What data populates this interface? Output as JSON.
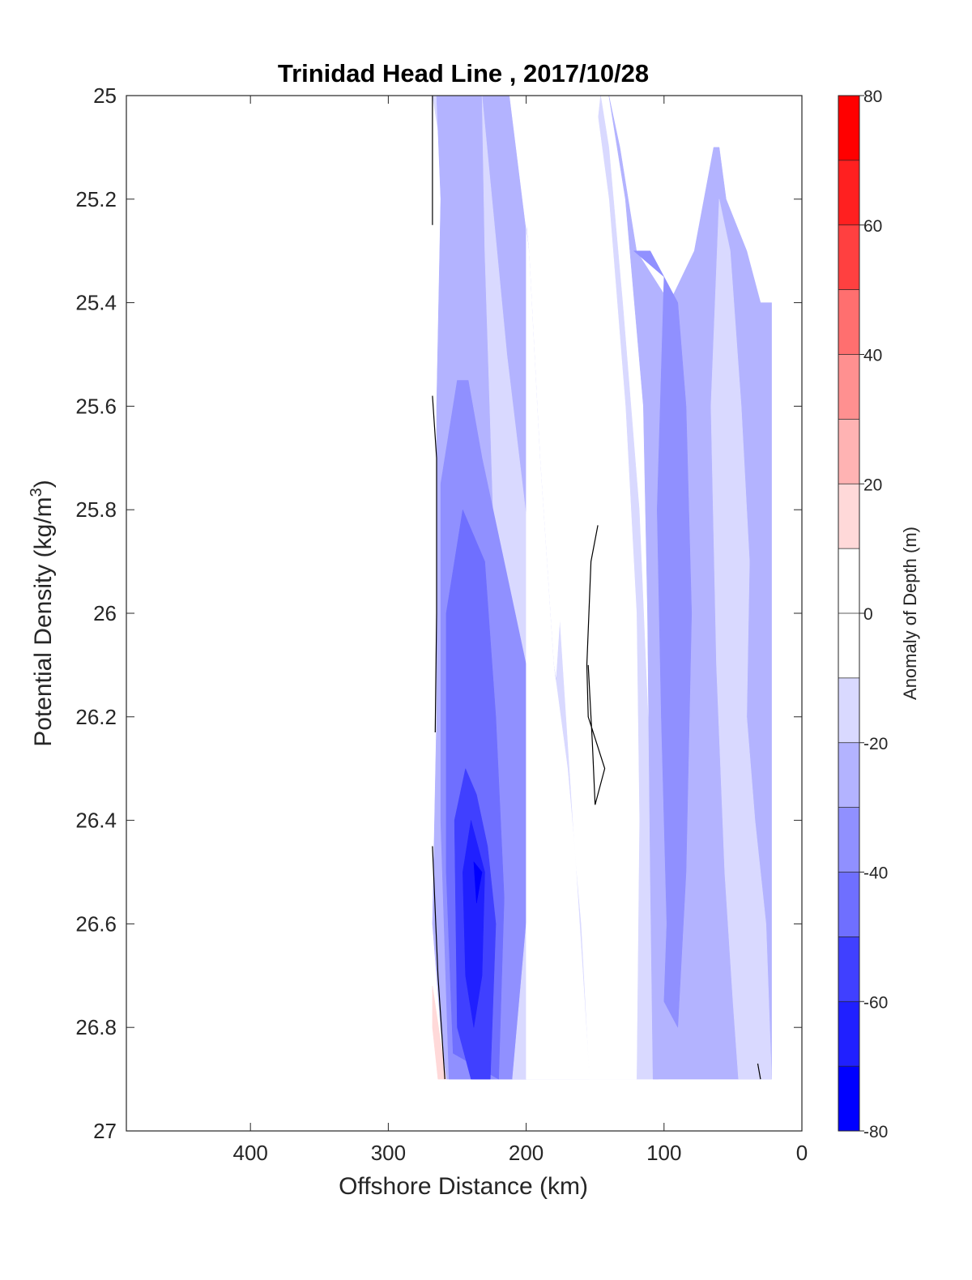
{
  "chart_data": {
    "type": "contour",
    "title": "Trinidad Head Line , 2017/10/28",
    "xlabel": "Offshore Distance (km)",
    "ylabel": "Potential Density (kg/m³)",
    "ylabel_main": "Potential Density (kg/m",
    "ylabel_sup": "3",
    "ylabel_close": ")",
    "xlim": [
      490,
      0
    ],
    "ylim": [
      25,
      27
    ],
    "x_reversed": true,
    "y_reversed": true,
    "xticks": [
      400,
      300,
      200,
      100,
      0
    ],
    "xtick_labels": [
      "400",
      "300",
      "200",
      "100",
      "0"
    ],
    "yticks": [
      25,
      25.2,
      25.4,
      25.6,
      25.8,
      26,
      26.2,
      26.4,
      26.6,
      26.8,
      27
    ],
    "ytick_labels": [
      "25",
      "25.2",
      "25.4",
      "25.6",
      "25.8",
      "26",
      "26.2",
      "26.4",
      "26.6",
      "26.8",
      "27"
    ],
    "colorbar": {
      "label": "Anomaly of Depth (m)",
      "range": [
        -80,
        80
      ],
      "step": 10,
      "ticks": [
        80,
        60,
        40,
        20,
        0,
        -20,
        -40,
        -60,
        -80
      ],
      "tick_labels": [
        "80",
        "60",
        "40",
        "20",
        "0",
        "-20",
        "-40",
        "-60",
        "-80"
      ]
    },
    "levels": [
      {
        "range": [
          -80,
          -70
        ],
        "color": "#0000ff"
      },
      {
        "range": [
          -70,
          -60
        ],
        "color": "#2020ff"
      },
      {
        "range": [
          -60,
          -50
        ],
        "color": "#4040ff"
      },
      {
        "range": [
          -50,
          -40
        ],
        "color": "#6f6fff"
      },
      {
        "range": [
          -40,
          -30
        ],
        "color": "#9090ff"
      },
      {
        "range": [
          -30,
          -20
        ],
        "color": "#b3b3ff"
      },
      {
        "range": [
          -20,
          -10
        ],
        "color": "#d9d9ff"
      },
      {
        "range": [
          -10,
          10
        ],
        "color": "#ffffff"
      },
      {
        "range": [
          10,
          20
        ],
        "color": "#ffd9d9"
      },
      {
        "range": [
          20,
          30
        ],
        "color": "#ffb3b3"
      },
      {
        "range": [
          30,
          40
        ],
        "color": "#ff9090"
      },
      {
        "range": [
          40,
          50
        ],
        "color": "#ff6f6f"
      },
      {
        "range": [
          50,
          60
        ],
        "color": "#ff4040"
      },
      {
        "range": [
          60,
          70
        ],
        "color": "#ff2020"
      },
      {
        "range": [
          70,
          80
        ],
        "color": "#ff0000"
      }
    ],
    "regions": [
      {
        "level": -15,
        "color": "#d9d9ff",
        "points": [
          [
            268,
            25
          ],
          [
            235,
            25
          ],
          [
            232,
            25.4
          ],
          [
            228,
            25.8
          ],
          [
            226,
            26.2
          ],
          [
            212,
            26.6
          ],
          [
            200,
            26.9
          ],
          [
            210,
            26.9
          ],
          [
            224,
            26.5
          ],
          [
            238,
            26.1
          ],
          [
            242,
            25.7
          ],
          [
            248,
            25.3
          ],
          [
            262,
            25.1
          ]
        ]
      },
      {
        "level": -25,
        "color": "#b3b3ff",
        "points": [
          [
            265,
            25
          ],
          [
            262,
            25.2
          ],
          [
            265,
            25.6
          ],
          [
            265,
            26.2
          ],
          [
            268,
            26.6
          ],
          [
            262,
            26.8
          ],
          [
            258,
            26.9
          ],
          [
            154,
            26.9
          ],
          [
            162,
            26.55
          ],
          [
            168,
            26.3
          ],
          [
            180,
            26.1
          ],
          [
            190,
            25.7
          ],
          [
            198,
            25.3
          ],
          [
            210,
            25
          ],
          [
            248,
            25
          ]
        ]
      },
      {
        "level": -15,
        "color": "#d9d9ff",
        "points": [
          [
            232,
            25
          ],
          [
            214,
            25.5
          ],
          [
            196,
            25.9
          ],
          [
            178,
            26.5
          ],
          [
            168,
            26.9
          ],
          [
            196,
            26.9
          ],
          [
            204,
            26.6
          ],
          [
            218,
            26.3
          ],
          [
            224,
            25.8
          ],
          [
            230,
            25.3
          ]
        ]
      },
      {
        "level": -35,
        "color": "#9090ff",
        "points": [
          [
            250,
            25.55
          ],
          [
            262,
            25.75
          ],
          [
            262,
            26.4
          ],
          [
            256,
            26.9
          ],
          [
            168,
            26.9
          ],
          [
            178,
            26.7
          ],
          [
            188,
            26.4
          ],
          [
            200,
            26.1
          ],
          [
            216,
            25.9
          ],
          [
            232,
            25.7
          ],
          [
            242,
            25.55
          ]
        ]
      },
      {
        "level": -45,
        "color": "#6f6fff",
        "points": [
          [
            246,
            25.8
          ],
          [
            258,
            26.0
          ],
          [
            258,
            26.5
          ],
          [
            253,
            26.85
          ],
          [
            220,
            26.9
          ],
          [
            216,
            26.55
          ],
          [
            222,
            26.2
          ],
          [
            230,
            25.9
          ]
        ]
      },
      {
        "level": -55,
        "color": "#4040ff",
        "points": [
          [
            244,
            26.3
          ],
          [
            252,
            26.4
          ],
          [
            250,
            26.8
          ],
          [
            240,
            26.9
          ],
          [
            226,
            26.9
          ],
          [
            222,
            26.6
          ],
          [
            228,
            26.45
          ],
          [
            236,
            26.35
          ]
        ]
      },
      {
        "level": -65,
        "color": "#2020ff",
        "points": [
          [
            240,
            26.4
          ],
          [
            246,
            26.5
          ],
          [
            244,
            26.7
          ],
          [
            238,
            26.8
          ],
          [
            232,
            26.7
          ],
          [
            230,
            26.5
          ]
        ]
      },
      {
        "level": -75,
        "color": "#0000ff",
        "points": [
          [
            238,
            26.48
          ],
          [
            232,
            26.5
          ],
          [
            236,
            26.56
          ]
        ]
      },
      {
        "level": 15,
        "color": "#ffd9d9",
        "points": [
          [
            268,
            26.72
          ],
          [
            268,
            26.8
          ],
          [
            264,
            26.9
          ],
          [
            258,
            26.9
          ]
        ]
      },
      {
        "level": -15,
        "color": "#d9d9ff",
        "points": [
          [
            146,
            25
          ],
          [
            140,
            25.1
          ],
          [
            130,
            25.4
          ],
          [
            118,
            25.8
          ],
          [
            110,
            26.3
          ],
          [
            104,
            26.9
          ],
          [
            210,
            26.9
          ],
          [
            200,
            26.6
          ],
          [
            180,
            26.2
          ],
          [
            170,
            25.8
          ],
          [
            160,
            25.4
          ],
          [
            150,
            25.1
          ]
        ]
      },
      {
        "level": 0,
        "color": "#ffffff",
        "points": [
          [
            200,
            25
          ],
          [
            200,
            26.9
          ],
          [
            154,
            26.9
          ],
          [
            160,
            26.6
          ],
          [
            170,
            26.3
          ],
          [
            180,
            26.1
          ],
          [
            190,
            25.7
          ],
          [
            198,
            25.3
          ],
          [
            212,
            25
          ],
          [
            150,
            25
          ],
          [
            140,
            25.2
          ],
          [
            128,
            25.6
          ],
          [
            120,
            26.0
          ],
          [
            118,
            26.4
          ],
          [
            120,
            26.9
          ],
          [
            154,
            26.9
          ]
        ]
      },
      {
        "level": -25,
        "color": "#b3b3ff",
        "points": [
          [
            140,
            25
          ],
          [
            128,
            25.2
          ],
          [
            115,
            25.6
          ],
          [
            112,
            26.0
          ],
          [
            110,
            26.5
          ],
          [
            108,
            26.9
          ],
          [
            22,
            26.9
          ],
          [
            22,
            25.4
          ],
          [
            30,
            25.4
          ],
          [
            40,
            25.3
          ],
          [
            55,
            25.2
          ],
          [
            60,
            25.1
          ],
          [
            64,
            25.1
          ],
          [
            78,
            25.3
          ],
          [
            96,
            25.4
          ],
          [
            120,
            25.3
          ],
          [
            132,
            25.1
          ]
        ]
      },
      {
        "level": -35,
        "color": "#9090ff",
        "points": [
          [
            122,
            25.3
          ],
          [
            100,
            25.35
          ],
          [
            105,
            25.8
          ],
          [
            102,
            26.2
          ],
          [
            98,
            26.6
          ],
          [
            100,
            26.75
          ],
          [
            90,
            26.8
          ],
          [
            84,
            26.5
          ],
          [
            80,
            26.0
          ],
          [
            84,
            25.6
          ],
          [
            90,
            25.4
          ],
          [
            110,
            25.3
          ]
        ]
      },
      {
        "level": -15,
        "color": "#d9d9ff",
        "points": [
          [
            60,
            25.2
          ],
          [
            66,
            25.6
          ],
          [
            62,
            26.1
          ],
          [
            56,
            26.5
          ],
          [
            50,
            26.75
          ],
          [
            46,
            26.9
          ],
          [
            22,
            26.9
          ],
          [
            26,
            26.6
          ],
          [
            34,
            26.4
          ],
          [
            40,
            26.2
          ],
          [
            38,
            25.9
          ],
          [
            44,
            25.6
          ],
          [
            52,
            25.3
          ]
        ]
      }
    ]
  }
}
